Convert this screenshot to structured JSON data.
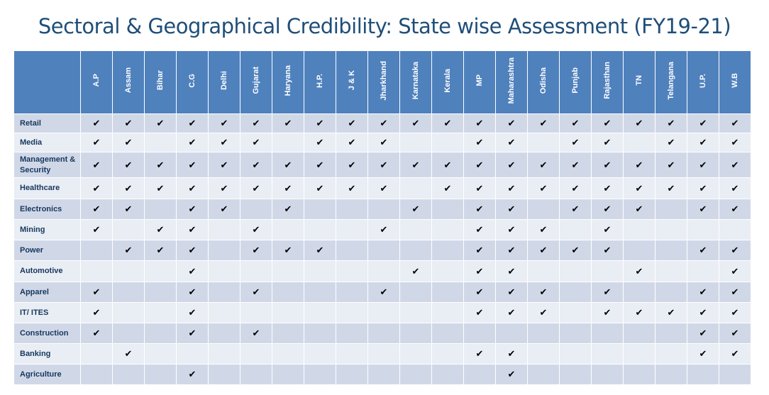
{
  "title": "Sectoral & Geographical Credibility: State wise Assessment (FY19-21)",
  "check_symbol": "✔",
  "states": [
    "A.P",
    "Assam",
    "Bihar",
    "C.G",
    "Delhi",
    "Gujarat",
    "Haryana",
    "H.P.",
    "J & K",
    "Jharkhand",
    "Karnataka",
    "Kerala",
    "MP",
    "Maharashtra",
    "Odisha",
    "Punjab",
    "Rajasthan",
    "TN",
    "Telangana",
    "U.P.",
    "W.B"
  ],
  "rows": [
    {
      "sector": "Retail",
      "checks": [
        1,
        1,
        1,
        1,
        1,
        1,
        1,
        1,
        1,
        1,
        1,
        1,
        1,
        1,
        1,
        1,
        1,
        1,
        1,
        1,
        1
      ]
    },
    {
      "sector": "Media",
      "checks": [
        1,
        1,
        0,
        1,
        1,
        1,
        0,
        1,
        1,
        1,
        0,
        0,
        1,
        1,
        0,
        1,
        1,
        0,
        1,
        1,
        1
      ]
    },
    {
      "sector": "Management & Security",
      "checks": [
        1,
        1,
        1,
        1,
        1,
        1,
        1,
        1,
        1,
        1,
        1,
        1,
        1,
        1,
        1,
        1,
        1,
        1,
        1,
        1,
        1
      ]
    },
    {
      "sector": "Healthcare",
      "checks": [
        1,
        1,
        1,
        1,
        1,
        1,
        1,
        1,
        1,
        1,
        0,
        1,
        1,
        1,
        1,
        1,
        1,
        1,
        1,
        1,
        1
      ]
    },
    {
      "sector": "Electronics",
      "checks": [
        1,
        1,
        0,
        1,
        1,
        0,
        1,
        0,
        0,
        0,
        1,
        0,
        1,
        1,
        0,
        1,
        1,
        1,
        0,
        1,
        1
      ]
    },
    {
      "sector": "Mining",
      "checks": [
        1,
        0,
        1,
        1,
        0,
        1,
        0,
        0,
        0,
        1,
        0,
        0,
        1,
        1,
        1,
        0,
        1,
        0,
        0,
        0,
        0
      ]
    },
    {
      "sector": "Power",
      "checks": [
        0,
        1,
        1,
        1,
        0,
        1,
        1,
        1,
        0,
        0,
        0,
        0,
        1,
        1,
        1,
        1,
        1,
        0,
        0,
        1,
        1
      ]
    },
    {
      "sector": "Automotive",
      "checks": [
        0,
        0,
        0,
        1,
        0,
        0,
        0,
        0,
        0,
        0,
        1,
        0,
        1,
        1,
        0,
        0,
        0,
        1,
        0,
        0,
        1
      ]
    },
    {
      "sector": "Apparel",
      "checks": [
        1,
        0,
        0,
        1,
        0,
        1,
        0,
        0,
        0,
        1,
        0,
        0,
        1,
        1,
        1,
        0,
        1,
        0,
        0,
        1,
        1
      ]
    },
    {
      "sector": "IT/ ITES",
      "checks": [
        1,
        0,
        0,
        1,
        0,
        0,
        0,
        0,
        0,
        0,
        0,
        0,
        1,
        1,
        1,
        0,
        1,
        1,
        1,
        1,
        1
      ]
    },
    {
      "sector": "Construction",
      "checks": [
        1,
        0,
        0,
        1,
        0,
        1,
        0,
        0,
        0,
        0,
        0,
        0,
        0,
        0,
        0,
        0,
        0,
        0,
        0,
        1,
        1
      ]
    },
    {
      "sector": "Banking",
      "checks": [
        0,
        1,
        0,
        0,
        0,
        0,
        0,
        0,
        0,
        0,
        0,
        0,
        1,
        1,
        0,
        0,
        0,
        0,
        0,
        1,
        1
      ]
    },
    {
      "sector": "Agriculture",
      "checks": [
        0,
        0,
        0,
        1,
        0,
        0,
        0,
        0,
        0,
        0,
        0,
        0,
        0,
        1,
        0,
        0,
        0,
        0,
        0,
        0,
        0
      ]
    }
  ]
}
